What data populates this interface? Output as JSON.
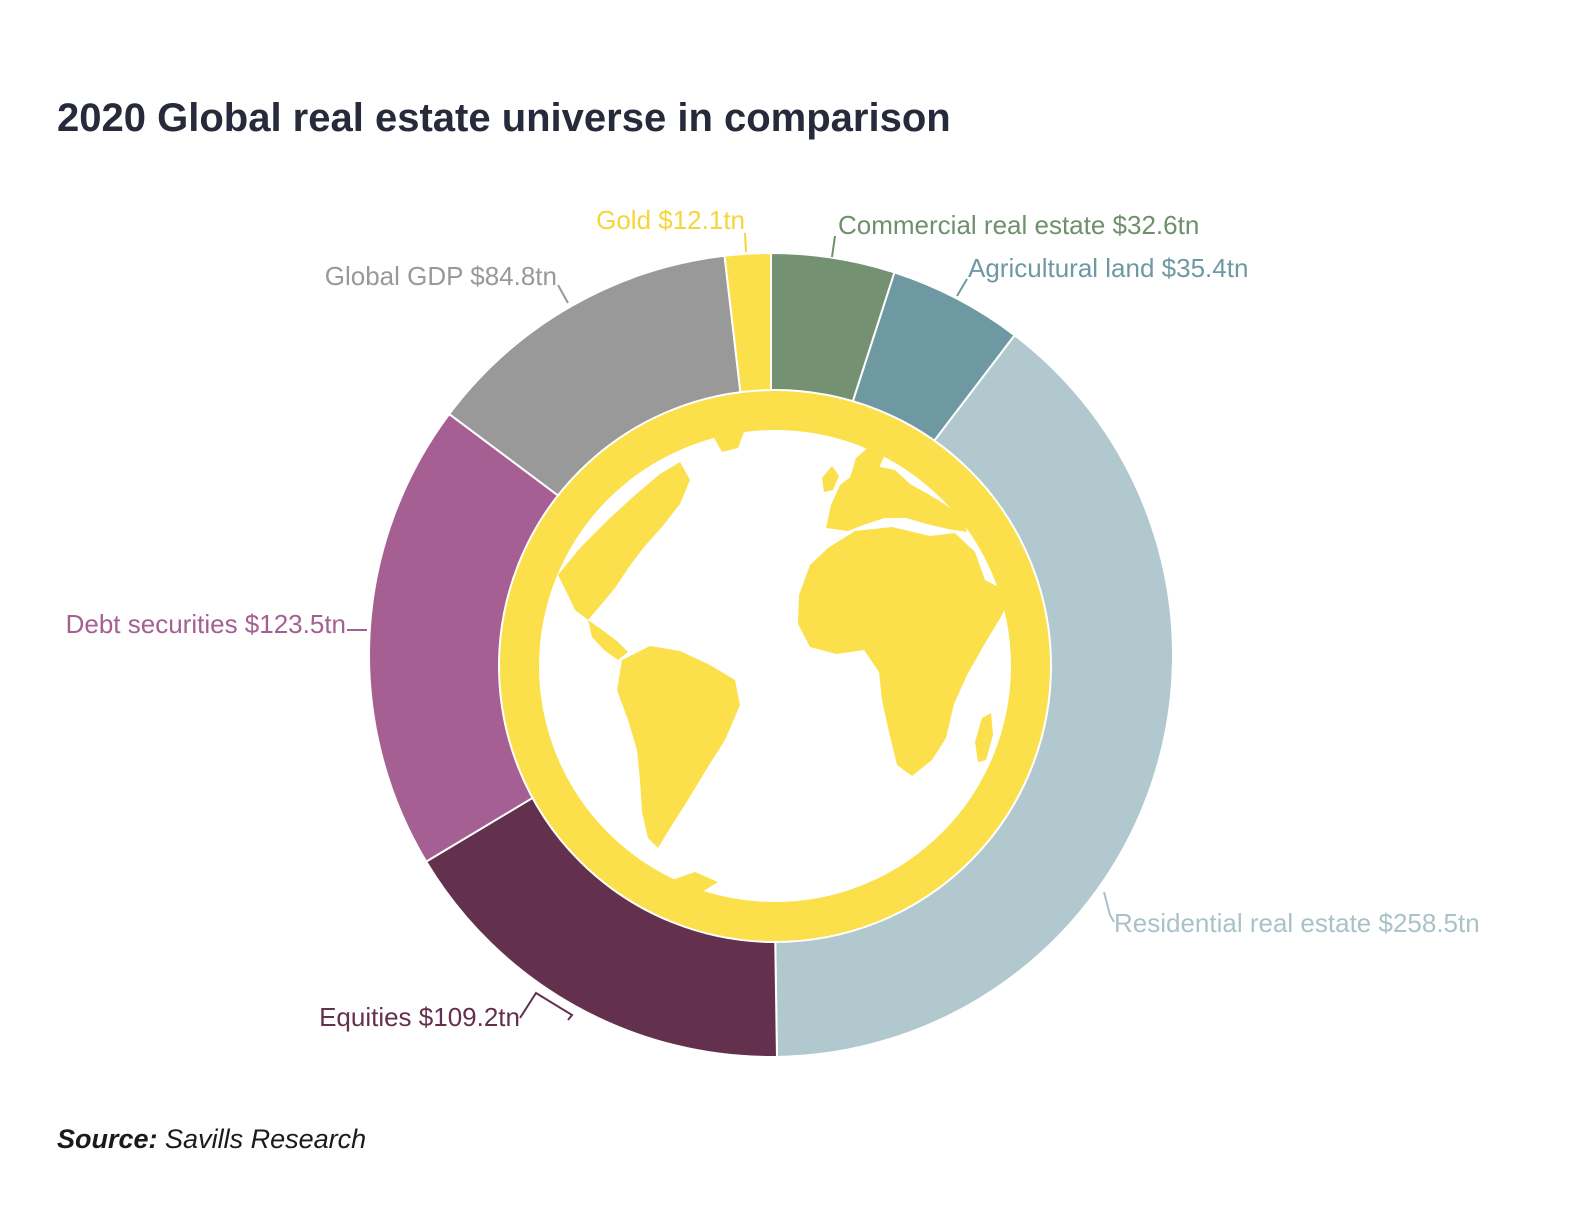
{
  "title": "2020 Global real estate universe in comparison",
  "source": {
    "label": "Source:",
    "text": "Savills Research"
  },
  "chart_data": {
    "type": "pie",
    "title": "2020 Global real estate universe in comparison",
    "unit": "tn",
    "slices": [
      {
        "label": "Commercial real estate",
        "value": 32.6,
        "display": "Commercial real estate $32.6tn",
        "color": "#749272",
        "text_color": "#6f8f6d"
      },
      {
        "label": "Agricultural land",
        "value": 35.4,
        "display": "Agricultural land $35.4tn",
        "color": "#6f99a2",
        "text_color": "#6f99a2"
      },
      {
        "label": "Residential real estate",
        "value": 258.5,
        "display": "Residential real estate $258.5tn",
        "color": "#b0c8ce",
        "text_color": "#a9c2c8"
      },
      {
        "label": "Equities",
        "value": 109.2,
        "display": "Equities $109.2tn",
        "color": "#63314e",
        "text_color": "#63314e"
      },
      {
        "label": "Debt securities",
        "value": 123.5,
        "display": "Debt securities $123.5tn",
        "color": "#a65f92",
        "text_color": "#a65f92"
      },
      {
        "label": "Global GDP",
        "value": 84.8,
        "display": "Global GDP $84.8tn",
        "color": "#999999",
        "text_color": "#999999"
      },
      {
        "label": "Gold",
        "value": 12.1,
        "display": "Gold $12.1tn",
        "color": "#fbe04b",
        "text_color": "#f5d63a"
      }
    ],
    "center_ring_color": "#fbe04b",
    "center_icon": "globe-icon"
  }
}
